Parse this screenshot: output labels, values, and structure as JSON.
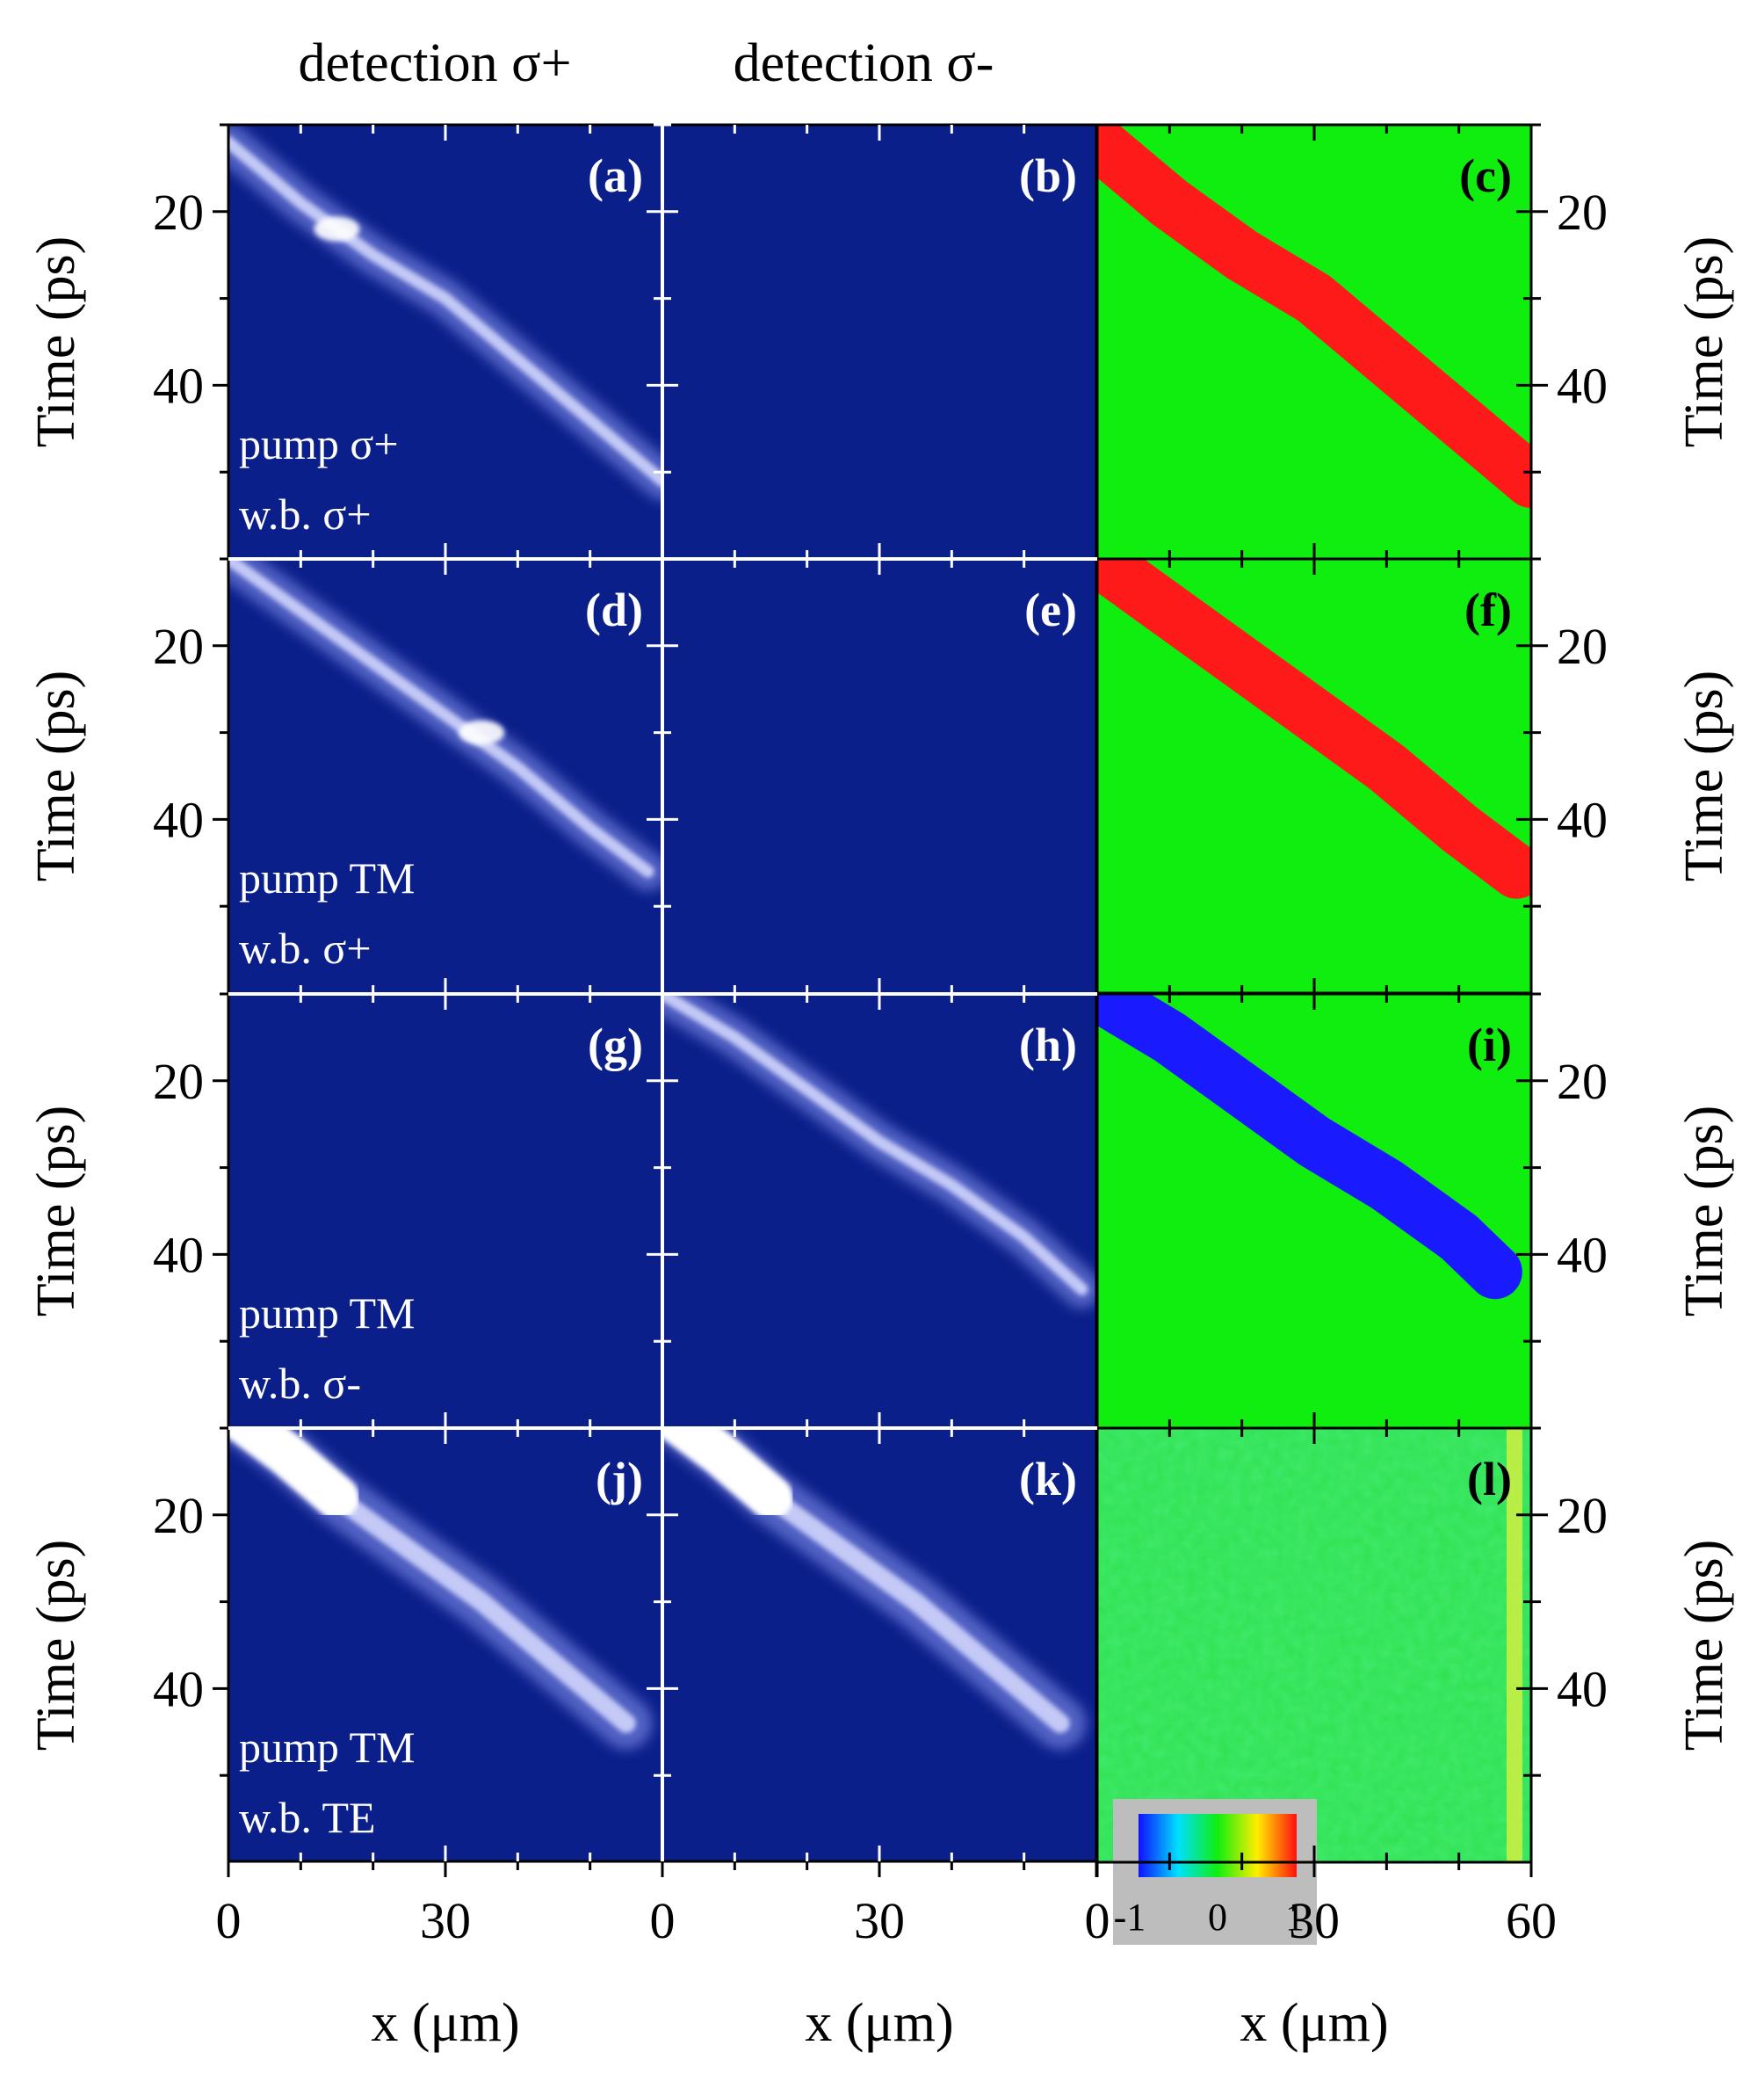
{
  "chart_data": {
    "type": "heatmap",
    "description_columns": [
      "detection σ+",
      "detection σ-",
      ""
    ],
    "column_titles": [
      "detection σ+",
      "detection σ-"
    ],
    "xlabel": "x (μm)",
    "ylabel": "Time (ps)",
    "xlim": [
      0,
      60
    ],
    "ylim": [
      10,
      60
    ],
    "x_ticks": [
      0,
      30,
      60
    ],
    "x_tick_labels": [
      [
        "0",
        "30"
      ],
      [
        "0",
        "30"
      ],
      [
        "0",
        "30",
        "60"
      ]
    ],
    "y_ticks": [
      20,
      40
    ],
    "y_tick_labels": [
      "20",
      "40"
    ],
    "colorbar": {
      "labels": [
        "-1",
        "0",
        "1"
      ],
      "range": [
        -1,
        1
      ]
    },
    "colors": {
      "background_dark": "#0b1f8a",
      "ratio_zero": "#10ee10",
      "ratio_positive": "#ff1a1a",
      "ratio_negative": "#1a1aff"
    },
    "panels": [
      {
        "id": "a",
        "label": "(a)",
        "kind": "intensity",
        "trace": [
          [
            0,
            12
          ],
          [
            10,
            19
          ],
          [
            20,
            25
          ],
          [
            30,
            30
          ],
          [
            40,
            37
          ],
          [
            50,
            44
          ],
          [
            60,
            51
          ]
        ],
        "bright_spot": [
          15,
          22
        ],
        "annotation": [
          "pump σ+",
          "w.b. σ+"
        ]
      },
      {
        "id": "b",
        "label": "(b)",
        "kind": "intensity",
        "trace": []
      },
      {
        "id": "c",
        "label": "(c)",
        "kind": "ratio",
        "sign": 1,
        "trace": [
          [
            0,
            12
          ],
          [
            10,
            19
          ],
          [
            20,
            25
          ],
          [
            30,
            30
          ],
          [
            40,
            37
          ],
          [
            50,
            44
          ],
          [
            60,
            51
          ]
        ]
      },
      {
        "id": "d",
        "label": "(d)",
        "kind": "intensity",
        "trace": [
          [
            0,
            10
          ],
          [
            10,
            16
          ],
          [
            20,
            22
          ],
          [
            30,
            28
          ],
          [
            40,
            34
          ],
          [
            50,
            41
          ],
          [
            58,
            46
          ]
        ],
        "bright_spot": [
          35,
          30
        ],
        "annotation": [
          "pump TM",
          "w.b. σ+"
        ]
      },
      {
        "id": "e",
        "label": "(e)",
        "kind": "intensity",
        "trace": []
      },
      {
        "id": "f",
        "label": "(f)",
        "kind": "ratio",
        "sign": 1,
        "trace": [
          [
            0,
            10
          ],
          [
            10,
            16
          ],
          [
            20,
            22
          ],
          [
            30,
            28
          ],
          [
            40,
            34
          ],
          [
            50,
            41
          ],
          [
            58,
            46
          ]
        ]
      },
      {
        "id": "g",
        "label": "(g)",
        "kind": "intensity",
        "trace": [],
        "annotation": [
          "pump TM",
          "w.b. σ-"
        ]
      },
      {
        "id": "h",
        "label": "(h)",
        "kind": "intensity",
        "trace": [
          [
            0,
            10
          ],
          [
            10,
            15
          ],
          [
            20,
            21
          ],
          [
            30,
            27
          ],
          [
            40,
            32
          ],
          [
            50,
            38
          ],
          [
            58,
            44
          ]
        ]
      },
      {
        "id": "i",
        "label": "(i)",
        "kind": "ratio",
        "sign": -1,
        "trace": [
          [
            0,
            10
          ],
          [
            10,
            15
          ],
          [
            20,
            21
          ],
          [
            30,
            27
          ],
          [
            40,
            32
          ],
          [
            50,
            38
          ],
          [
            55,
            42
          ]
        ]
      },
      {
        "id": "j",
        "label": "(j)",
        "kind": "intensity",
        "trace": [
          [
            0,
            8
          ],
          [
            8,
            13
          ],
          [
            15,
            18
          ],
          [
            25,
            24
          ],
          [
            35,
            30
          ],
          [
            45,
            37
          ],
          [
            55,
            44
          ]
        ],
        "saturated": true,
        "annotation": [
          "pump TM",
          "w.b. TE"
        ]
      },
      {
        "id": "k",
        "label": "(k)",
        "kind": "intensity",
        "trace": [
          [
            0,
            8
          ],
          [
            8,
            13
          ],
          [
            15,
            18
          ],
          [
            25,
            24
          ],
          [
            35,
            30
          ],
          [
            45,
            37
          ],
          [
            55,
            44
          ]
        ],
        "saturated": true
      },
      {
        "id": "l",
        "label": "(l)",
        "kind": "ratio_noise",
        "trace": []
      }
    ]
  }
}
